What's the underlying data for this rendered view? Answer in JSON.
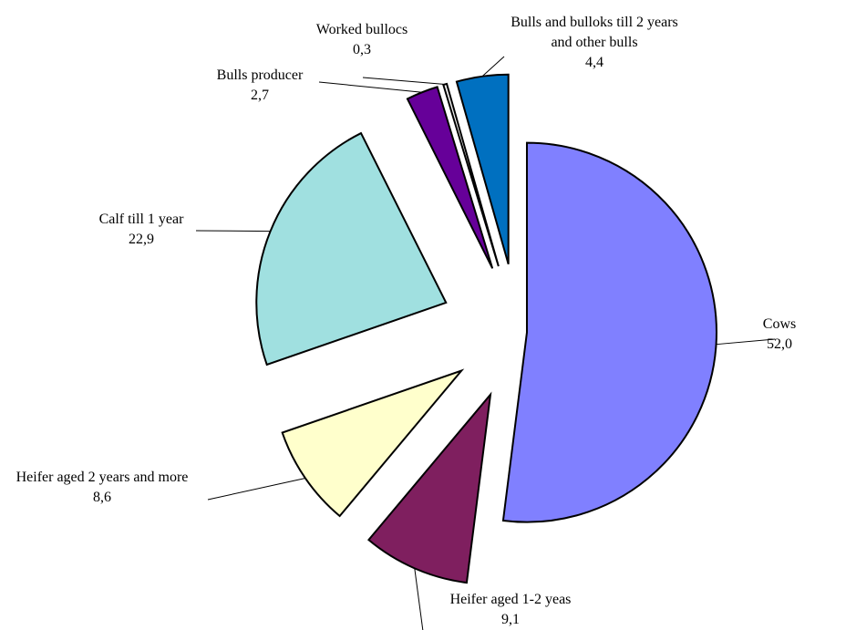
{
  "chart_data": {
    "type": "pie",
    "categories": [
      "Cows",
      "Heifer aged 1-2 yeas",
      "Heifer aged 2 years and more",
      "Calf till 1 year",
      "Bulls producer",
      "Worked bullocs",
      "Bulls and bulloks till 2 years and other bulls"
    ],
    "values": [
      52.0,
      9.1,
      8.6,
      22.9,
      2.7,
      0.3,
      4.4
    ],
    "value_labels": [
      "52,0",
      "9,1",
      "8,6",
      "22,9",
      "2,7",
      "0,3",
      "4,4"
    ],
    "colors": [
      "#8080ff",
      "#7f1f5f",
      "#ffffcc",
      "#a0e0e0",
      "#660099",
      "#f0f0f0",
      "#0070c0"
    ]
  }
}
